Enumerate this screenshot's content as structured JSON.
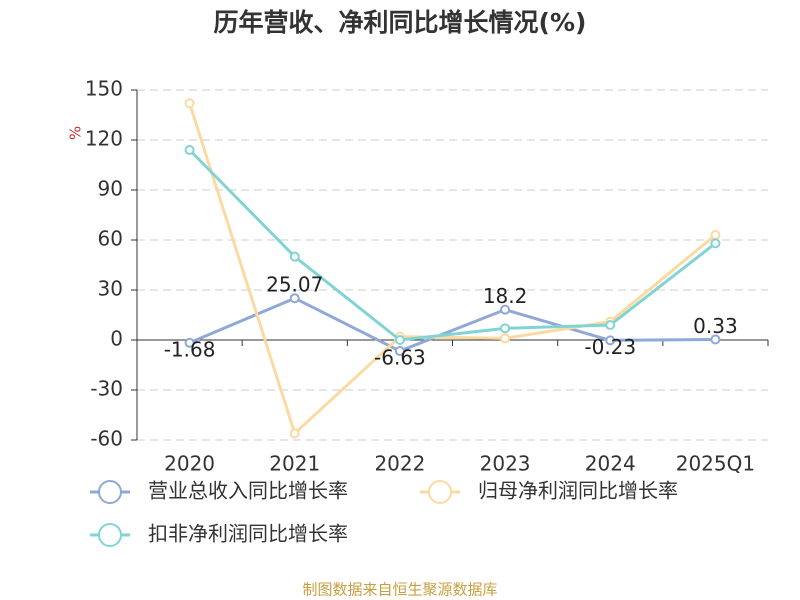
{
  "chart_data": {
    "type": "line",
    "title": "历年营收、净利同比增长情况(%)",
    "y_label": "%",
    "categories": [
      "2020",
      "2021",
      "2022",
      "2023",
      "2024",
      "2025Q1"
    ],
    "series": [
      {
        "name": "营业总收入同比增长率",
        "color": "#8fa8d8",
        "values": [
          -1.68,
          25.07,
          -6.63,
          18.2,
          -0.23,
          0.33
        ],
        "show_labels": true
      },
      {
        "name": "归母净利润同比增长率",
        "color": "#fcd9a0",
        "values": [
          142,
          -56,
          2,
          1,
          11,
          63
        ],
        "show_labels": false
      },
      {
        "name": "扣非净利润同比增长率",
        "color": "#80d4d4",
        "values": [
          114,
          50,
          0,
          7,
          9,
          58
        ],
        "show_labels": false
      }
    ],
    "ylim": [
      -60,
      150
    ],
    "yticks": [
      -60,
      -30,
      0,
      30,
      60,
      90,
      120,
      150
    ],
    "grid": true,
    "source": "制图数据来自恒生聚源数据库"
  }
}
